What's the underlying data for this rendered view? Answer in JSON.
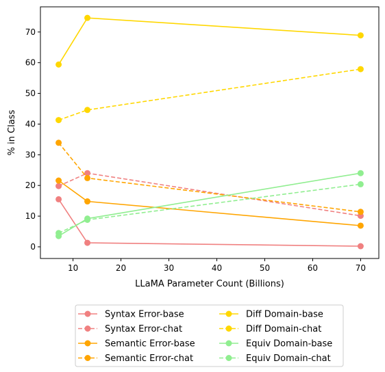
{
  "chart_data": {
    "type": "line",
    "xlabel": "LLaMA Parameter Count (Billions)",
    "ylabel": "% in Class",
    "xlim": [
      3.2,
      73.8
    ],
    "ylim": [
      -3.8,
      78.2
    ],
    "xticks": [
      10,
      20,
      30,
      40,
      50,
      60,
      70
    ],
    "yticks": [
      0,
      10,
      20,
      30,
      40,
      50,
      60,
      70
    ],
    "grid": false,
    "legend_position": "bottom-center, outside plot, 2 columns",
    "x": [
      7,
      13,
      70
    ],
    "series": [
      {
        "name": "Syntax Error-base",
        "color": "#f08080",
        "dash": "solid",
        "values": [
          15.5,
          1.3,
          0.2
        ]
      },
      {
        "name": "Syntax Error-chat",
        "color": "#f08080",
        "dash": "dashed",
        "values": [
          19.8,
          24.0,
          10.1
        ]
      },
      {
        "name": "Semantic Error-base",
        "color": "#ffa500",
        "dash": "solid",
        "values": [
          21.6,
          14.8,
          6.9
        ]
      },
      {
        "name": "Semantic Error-chat",
        "color": "#ffa500",
        "dash": "dashed",
        "values": [
          33.9,
          22.4,
          11.4
        ]
      },
      {
        "name": "Diff Domain-base",
        "color": "#ffd700",
        "dash": "solid",
        "values": [
          59.4,
          74.6,
          68.9
        ]
      },
      {
        "name": "Diff Domain-chat",
        "color": "#ffd700",
        "dash": "dashed",
        "values": [
          41.3,
          44.6,
          57.9
        ]
      },
      {
        "name": "Equiv Domain-base",
        "color": "#90ee90",
        "dash": "solid",
        "values": [
          3.5,
          9.2,
          24.0
        ]
      },
      {
        "name": "Equiv Domain-chat",
        "color": "#90ee90",
        "dash": "dashed",
        "values": [
          4.5,
          8.8,
          20.4
        ]
      }
    ]
  }
}
